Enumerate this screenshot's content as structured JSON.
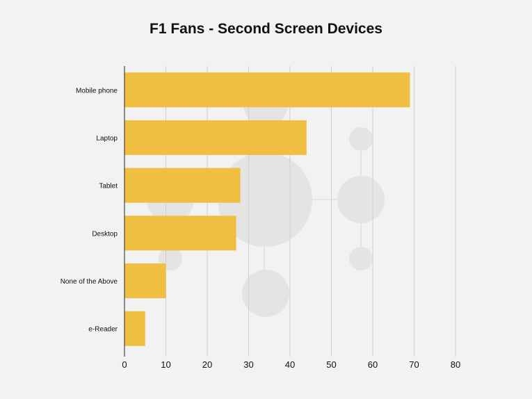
{
  "colors": {
    "background": "#f2f2f2",
    "bar": "#f0bf42",
    "grid": "#cfcfcf",
    "axis": "#222222",
    "decoration": "#e4e4e4"
  },
  "chart_data": {
    "type": "bar",
    "orientation": "horizontal",
    "title": "F1 Fans - Second Screen Devices",
    "xlabel": "",
    "ylabel": "",
    "categories": [
      "Mobile phone",
      "Laptop",
      "Tablet",
      "Desktop",
      "None of the Above",
      "e-Reader"
    ],
    "values": [
      69,
      44,
      28,
      27,
      10,
      5
    ],
    "xlim": [
      0,
      80
    ],
    "xticks": [
      0,
      10,
      20,
      30,
      40,
      50,
      60,
      70,
      80
    ],
    "grid": true,
    "legend": "none"
  }
}
